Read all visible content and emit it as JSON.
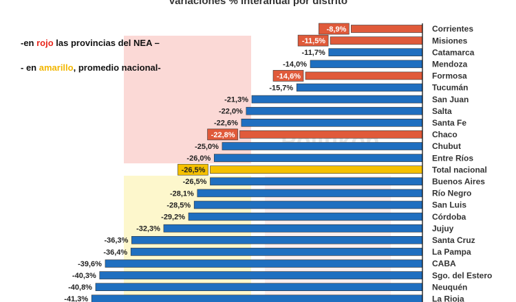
{
  "chart_data": {
    "type": "barh",
    "title": "Variaciones % interanual por distrito",
    "notes": [
      [
        "-en ",
        "rojo",
        " las provincias del NEA –"
      ],
      [
        "- en ",
        "amarillo",
        ", promedio nacional-"
      ]
    ],
    "note_colors": [
      "#e8261c",
      "#f2b600"
    ],
    "watermark": "Politikon",
    "categories": [
      "Corrientes",
      "Misiones",
      "Catamarca",
      "Mendoza",
      "Formosa",
      "Tucumán",
      "San Juan",
      "Salta",
      "Santa Fe",
      "Chaco",
      "Chubut",
      "Entre Ríos",
      "Total nacional",
      "Buenos Aires",
      "Río Negro",
      "San Luis",
      "Córdoba",
      "Jujuy",
      "Santa Cruz",
      "La Pampa",
      "CABA",
      "Sgo. del Estero",
      "Neuquén",
      "La Rioja"
    ],
    "values": [
      -8.9,
      -11.5,
      -11.7,
      -14.0,
      -14.6,
      -15.7,
      -21.3,
      -22.0,
      -22.6,
      -22.8,
      -25.0,
      -26.0,
      -26.5,
      -26.5,
      -28.1,
      -28.5,
      -29.2,
      -32.3,
      -36.3,
      -36.4,
      -39.6,
      -40.3,
      -40.8,
      -41.3
    ],
    "value_labels": [
      "-8,9%",
      "-11,5%",
      "-11,7%",
      "-14,0%",
      "-14,6%",
      "-15,7%",
      "-21,3%",
      "-22,0%",
      "-22,6%",
      "-22,8%",
      "-25,0%",
      "-26,0%",
      "-26,5%",
      "-26,5%",
      "-28,1%",
      "-28,5%",
      "-29,2%",
      "-32,3%",
      "-36,3%",
      "-36,4%",
      "-39,6%",
      "-40,3%",
      "-40,8%",
      "-41,3%"
    ],
    "colors": [
      "#e05a3a",
      "#e05a3a",
      "#1f6fc0",
      "#1f6fc0",
      "#e05a3a",
      "#1f6fc0",
      "#1f6fc0",
      "#1f6fc0",
      "#1f6fc0",
      "#e05a3a",
      "#1f6fc0",
      "#1f6fc0",
      "#f5c000",
      "#1f6fc0",
      "#1f6fc0",
      "#1f6fc0",
      "#1f6fc0",
      "#1f6fc0",
      "#1f6fc0",
      "#1f6fc0",
      "#1f6fc0",
      "#1f6fc0",
      "#1f6fc0",
      "#1f6fc0"
    ],
    "xlim": [
      -42,
      0
    ]
  }
}
